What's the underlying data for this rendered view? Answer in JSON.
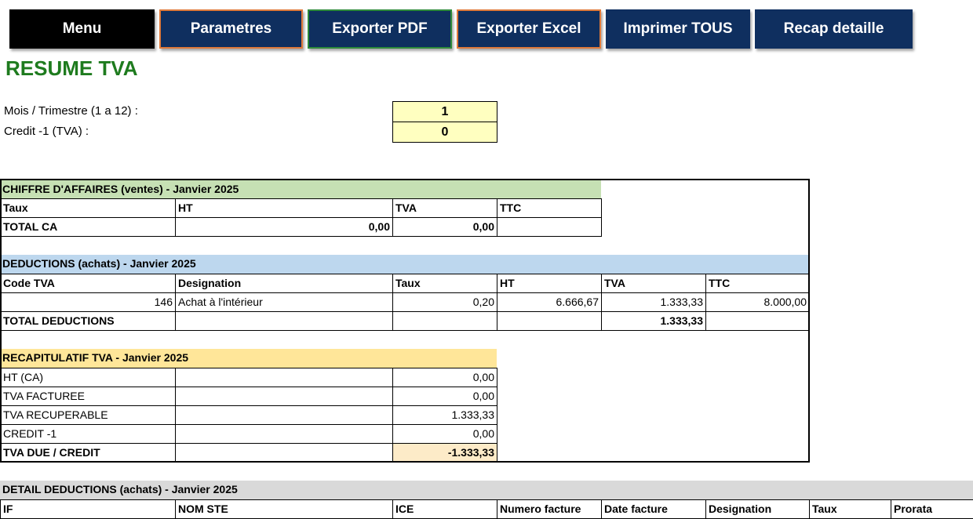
{
  "menu": [
    "Menu",
    "Parametres",
    "Exporter PDF",
    "Exporter Excel",
    "Imprimer TOUS",
    "Recap detaille"
  ],
  "title": "RESUME TVA",
  "inputs": [
    {
      "label": "Mois / Trimestre (1 a 12) :",
      "value": "1"
    },
    {
      "label": "Credit -1 (TVA) :",
      "value": "0"
    }
  ],
  "sales": {
    "title": "CHIFFRE D'AFFAIRES (ventes) - Janvier 2025",
    "headers": [
      "Taux",
      "HT",
      "TVA",
      "TTC"
    ],
    "rows": [
      [
        "TOTAL CA",
        "0,00",
        "0,00",
        null
      ]
    ]
  },
  "deductions": {
    "title": "DEDUCTIONS (achats) - Janvier 2025",
    "headers": [
      "Code TVA",
      "Designation",
      "Taux",
      "HT",
      "TVA",
      "TTC"
    ],
    "rows": [
      [
        "146",
        "Achat à l'intérieur",
        "0,20",
        "6.666,67",
        "1.333,33",
        "8.000,00"
      ],
      [
        "TOTAL DEDUCTIONS",
        null,
        null,
        null,
        "1.333,33",
        null
      ]
    ]
  },
  "recap": {
    "title": "RECAPITULATIF TVA - Janvier 2025",
    "rows": [
      [
        "HT (CA)",
        null,
        "0,00"
      ],
      [
        "TVA FACTUREE",
        null,
        "0,00"
      ],
      [
        "TVA RECUPERABLE",
        null,
        "1.333,33"
      ],
      [
        "CREDIT -1",
        null,
        "0,00"
      ],
      [
        "TVA DUE / CREDIT",
        null,
        "-1.333,33"
      ]
    ]
  },
  "detail": {
    "title": "DETAIL DEDUCTIONS (achats) - Janvier 2025",
    "headers": [
      "IF",
      "NOM STE",
      "ICE",
      "Numero facture",
      "Date facture",
      "Designation",
      "Taux",
      "Prorata"
    ]
  }
}
